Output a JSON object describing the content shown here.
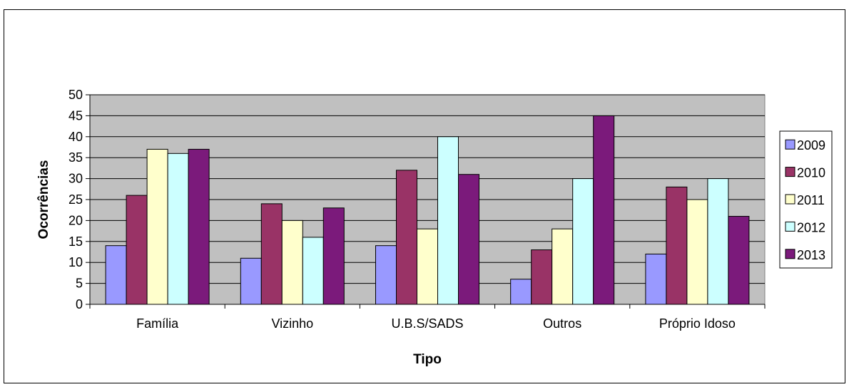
{
  "chart_data": {
    "type": "bar",
    "title": "",
    "xlabel": "Tipo",
    "ylabel": "Ocorrências",
    "ylim": [
      0,
      50
    ],
    "ytick_step": 5,
    "grid": true,
    "legend_position": "right",
    "plot_background": "#c0c0c0",
    "categories": [
      "Família",
      "Vizinho",
      "U.B.S/SADS",
      "Outros",
      "Próprio Idoso"
    ],
    "series": [
      {
        "name": "2009",
        "color": "#9999ff",
        "values": [
          14,
          11,
          14,
          6,
          12
        ]
      },
      {
        "name": "2010",
        "color": "#993366",
        "values": [
          26,
          24,
          32,
          13,
          28
        ]
      },
      {
        "name": "2011",
        "color": "#ffffcc",
        "values": [
          37,
          20,
          18,
          18,
          25
        ]
      },
      {
        "name": "2012",
        "color": "#ccffff",
        "values": [
          36,
          16,
          40,
          30,
          30
        ]
      },
      {
        "name": "2013",
        "color": "#7b1a7b",
        "values": [
          37,
          23,
          31,
          45,
          21
        ]
      }
    ]
  }
}
